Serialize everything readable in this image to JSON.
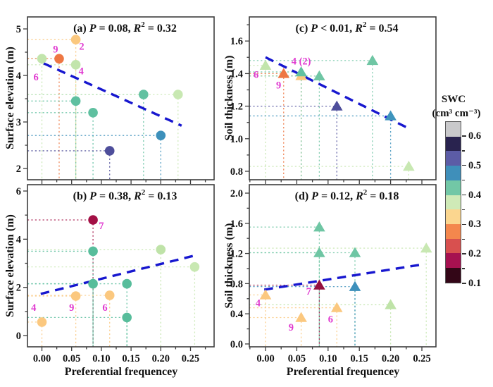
{
  "figure": {
    "xlabel": "Preferential frequencey",
    "ylabel_surface": "Surface elevation (m)",
    "ylabel_soil": "Soil thickness (m)",
    "trend_color": "#1717cf",
    "site_label_color": "#e03bd0",
    "frame_color": "#3d3d3d",
    "text_color": "#111111"
  },
  "colorbar": {
    "title": "SWC",
    "units": "(cm³ cm⁻³)",
    "tick_labels": [
      "0.6",
      "0.5",
      "0.4",
      "0.3",
      "0.2",
      "0.1"
    ],
    "segments_top_to_bottom": [
      "#c9c9cb",
      "#29234f",
      "#5c5ca6",
      "#3f8fba",
      "#72c7a6",
      "#cfeab7",
      "#fbd68f",
      "#f4874d",
      "#d8504f",
      "#a61150",
      "#330617"
    ]
  },
  "chart_data": [
    {
      "id": "a",
      "type": "scatter",
      "marker": "circle",
      "pos": "top-left",
      "title_parts": [
        [
          "(a) ",
          "n"
        ],
        [
          "P",
          "i"
        ],
        [
          " = 0.08, ",
          "n"
        ],
        [
          "R",
          "i"
        ],
        [
          "2",
          "s"
        ],
        [
          " = 0.32",
          "n"
        ]
      ],
      "xlabel": "Preferential frequencey",
      "ylabel": "Surface elevation (m)",
      "xlim": [
        -0.0243,
        0.2897
      ],
      "ylim": [
        1.758,
        5.258
      ],
      "xticks": [
        0,
        0.05,
        0.1,
        0.15,
        0.2,
        0.25
      ],
      "xtick_labels": null,
      "xminor_step": 0.025,
      "yticks": [
        2,
        3,
        4,
        5
      ],
      "ytick_labels": [
        "2",
        "3",
        "4",
        "5"
      ],
      "yminor_step": 0.5,
      "trend": [
        0.003,
        4.26,
        0.235,
        2.92
      ],
      "points": [
        {
          "x": 0.0,
          "y": 4.36,
          "color": "#c2e5ac",
          "label": "6",
          "lx": -0.01,
          "ly": 3.97
        },
        {
          "x": 0.029,
          "y": 4.36,
          "color": "#ee7743",
          "label": "9",
          "lx": 0.023,
          "ly": 4.57
        },
        {
          "x": 0.057,
          "y": 4.77,
          "color": "#fbc87f",
          "label": "2",
          "lx": 0.067,
          "ly": 4.63
        },
        {
          "x": 0.057,
          "y": 4.23,
          "color": "#c2e5ac",
          "label": "4",
          "lx": 0.066,
          "ly": 4.1
        },
        {
          "x": 0.057,
          "y": 3.45,
          "color": "#5fc0a0"
        },
        {
          "x": 0.086,
          "y": 3.2,
          "color": "#5fc0a0"
        },
        {
          "x": 0.114,
          "y": 2.38,
          "color": "#4e4e9b"
        },
        {
          "x": 0.171,
          "y": 3.59,
          "color": "#62c1a1"
        },
        {
          "x": 0.2,
          "y": 2.71,
          "color": "#3d90bb"
        },
        {
          "x": 0.229,
          "y": 3.59,
          "color": "#c8e8b2"
        }
      ]
    },
    {
      "id": "b",
      "type": "scatter",
      "marker": "circle",
      "pos": "bottom-left",
      "title_parts": [
        [
          "(b) ",
          "n"
        ],
        [
          "P",
          "i"
        ],
        [
          " = 0.38, ",
          "n"
        ],
        [
          "R",
          "i"
        ],
        [
          "2",
          "s"
        ],
        [
          " = 0.13",
          "n"
        ]
      ],
      "xlabel": "Preferential frequencey",
      "ylabel": "Surface elevation (m)",
      "xlim": [
        -0.0243,
        0.2897
      ],
      "ylim": [
        -0.467,
        6.263
      ],
      "xticks": [
        0,
        0.05,
        0.1,
        0.15,
        0.2,
        0.25
      ],
      "xtick_labels": [
        "0.00",
        "0.05",
        "0.10",
        "0.15",
        "0.20",
        "0.25"
      ],
      "xminor_step": 0.025,
      "yticks": [
        0,
        2,
        4,
        6
      ],
      "ytick_labels": [
        "0",
        "2",
        "4",
        "6"
      ],
      "yminor_step": 1,
      "trend": [
        -0.002,
        1.73,
        0.255,
        3.31
      ],
      "points": [
        {
          "x": 0.0,
          "y": 0.56,
          "color": "#fbc87f",
          "label": "4",
          "lx": -0.014,
          "ly": 1.17
        },
        {
          "x": 0.057,
          "y": 1.64,
          "color": "#fbc87f",
          "label": "9",
          "lx": 0.05,
          "ly": 1.17
        },
        {
          "x": 0.086,
          "y": 4.8,
          "color": "#a31045",
          "label": "7",
          "lx": 0.1,
          "ly": 4.56
        },
        {
          "x": 0.086,
          "y": 3.5,
          "color": "#57bd9b"
        },
        {
          "x": 0.086,
          "y": 2.15,
          "color": "#57bd9b"
        },
        {
          "x": 0.114,
          "y": 1.67,
          "color": "#fbc87f",
          "label": "6",
          "lx": 0.106,
          "ly": 1.17
        },
        {
          "x": 0.143,
          "y": 2.15,
          "color": "#57bd9b"
        },
        {
          "x": 0.143,
          "y": 0.75,
          "color": "#57bd9b"
        },
        {
          "x": 0.2,
          "y": 3.57,
          "color": "#bfe3a8"
        },
        {
          "x": 0.257,
          "y": 2.85,
          "color": "#c8e8b2"
        }
      ]
    },
    {
      "id": "c",
      "type": "scatter",
      "marker": "triangle",
      "pos": "top-right",
      "title_parts": [
        [
          "(c) ",
          "n"
        ],
        [
          "P",
          "i"
        ],
        [
          " < 0.01, ",
          "n"
        ],
        [
          "R",
          "i"
        ],
        [
          "2",
          "s"
        ],
        [
          " = 0.54",
          "n"
        ]
      ],
      "xlabel": "Preferential frequencey",
      "ylabel": "Soil thickness (m)",
      "xlim": [
        -0.0259,
        0.2725
      ],
      "ylim": [
        0.748,
        1.748
      ],
      "xticks": [
        0,
        0.05,
        0.1,
        0.15,
        0.2,
        0.25
      ],
      "xtick_labels": null,
      "xminor_step": 0.025,
      "yticks": [
        0.8,
        1.0,
        1.2,
        1.4,
        1.6
      ],
      "ytick_labels": [
        "0.8",
        "1.0",
        "1.2",
        "1.4",
        "1.6"
      ],
      "yminor_step": 0.1,
      "trend": [
        0.0,
        1.5,
        0.228,
        1.065
      ],
      "points": [
        {
          "x": 0.0,
          "y": 1.45,
          "color": "#c2e5ac",
          "label": "6",
          "lx": -0.015,
          "ly": 1.396
        },
        {
          "x": 0.029,
          "y": 1.4,
          "color": "#ee7743",
          "label": "9",
          "lx": 0.021,
          "ly": 1.33
        },
        {
          "x": 0.057,
          "y": 1.387,
          "color": "#fbc87f"
        },
        {
          "x": 0.057,
          "y": 1.41,
          "color": "#62c1a1",
          "label": "4 (2)",
          "lx": 0.057,
          "ly": 1.478
        },
        {
          "x": 0.086,
          "y": 1.385,
          "color": "#6fc6a4"
        },
        {
          "x": 0.114,
          "y": 1.2,
          "color": "#4e4e9b"
        },
        {
          "x": 0.171,
          "y": 1.48,
          "color": "#6fc6a4"
        },
        {
          "x": 0.2,
          "y": 1.14,
          "color": "#3e94bd"
        },
        {
          "x": 0.229,
          "y": 0.83,
          "color": "#c8e8b2"
        }
      ]
    },
    {
      "id": "d",
      "type": "scatter",
      "marker": "triangle",
      "pos": "bottom-right",
      "title_parts": [
        [
          "(d) ",
          "n"
        ],
        [
          "P",
          "i"
        ],
        [
          " = 0.12, ",
          "n"
        ],
        [
          "R",
          "i"
        ],
        [
          "2",
          "s"
        ],
        [
          " = 0.18",
          "n"
        ]
      ],
      "xlabel": "Preferential frequencey",
      "ylabel": "Soil thickness (m)",
      "xlim": [
        -0.0259,
        0.2725
      ],
      "ylim": [
        -0.038,
        2.112
      ],
      "xticks": [
        0,
        0.05,
        0.1,
        0.15,
        0.2,
        0.25
      ],
      "xtick_labels": [
        "0.00",
        "0.05",
        "0.10",
        "0.15",
        "0.20",
        "0.25"
      ],
      "xminor_step": 0.025,
      "yticks": [
        0,
        0.4,
        0.8,
        1.2,
        1.6,
        2.0
      ],
      "ytick_labels": [
        "0.0",
        "0.4",
        "0.8",
        "1.2",
        "1.6",
        "2.0"
      ],
      "yminor_step": 0.2,
      "trend": [
        -0.002,
        0.72,
        0.255,
        1.06
      ],
      "points": [
        {
          "x": 0.0,
          "y": 0.65,
          "color": "#fbc87f",
          "label": "4",
          "lx": -0.012,
          "ly": 0.545
        },
        {
          "x": 0.057,
          "y": 0.35,
          "color": "#fbc87f",
          "label": "9",
          "lx": 0.041,
          "ly": 0.225
        },
        {
          "x": 0.086,
          "y": 1.55,
          "color": "#6fc6a4"
        },
        {
          "x": 0.086,
          "y": 1.21,
          "color": "#6fc6a4"
        },
        {
          "x": 0.086,
          "y": 0.78,
          "color": "#941040",
          "label": "7",
          "lx": 0.069,
          "ly": 0.7
        },
        {
          "x": 0.114,
          "y": 0.48,
          "color": "#fbc87f",
          "label": "6",
          "lx": 0.104,
          "ly": 0.33
        },
        {
          "x": 0.143,
          "y": 1.21,
          "color": "#6fc6a4"
        },
        {
          "x": 0.143,
          "y": 0.76,
          "color": "#3d90bb"
        },
        {
          "x": 0.2,
          "y": 0.52,
          "color": "#bfe3a8"
        },
        {
          "x": 0.257,
          "y": 1.27,
          "color": "#c8e8b2"
        }
      ]
    }
  ]
}
